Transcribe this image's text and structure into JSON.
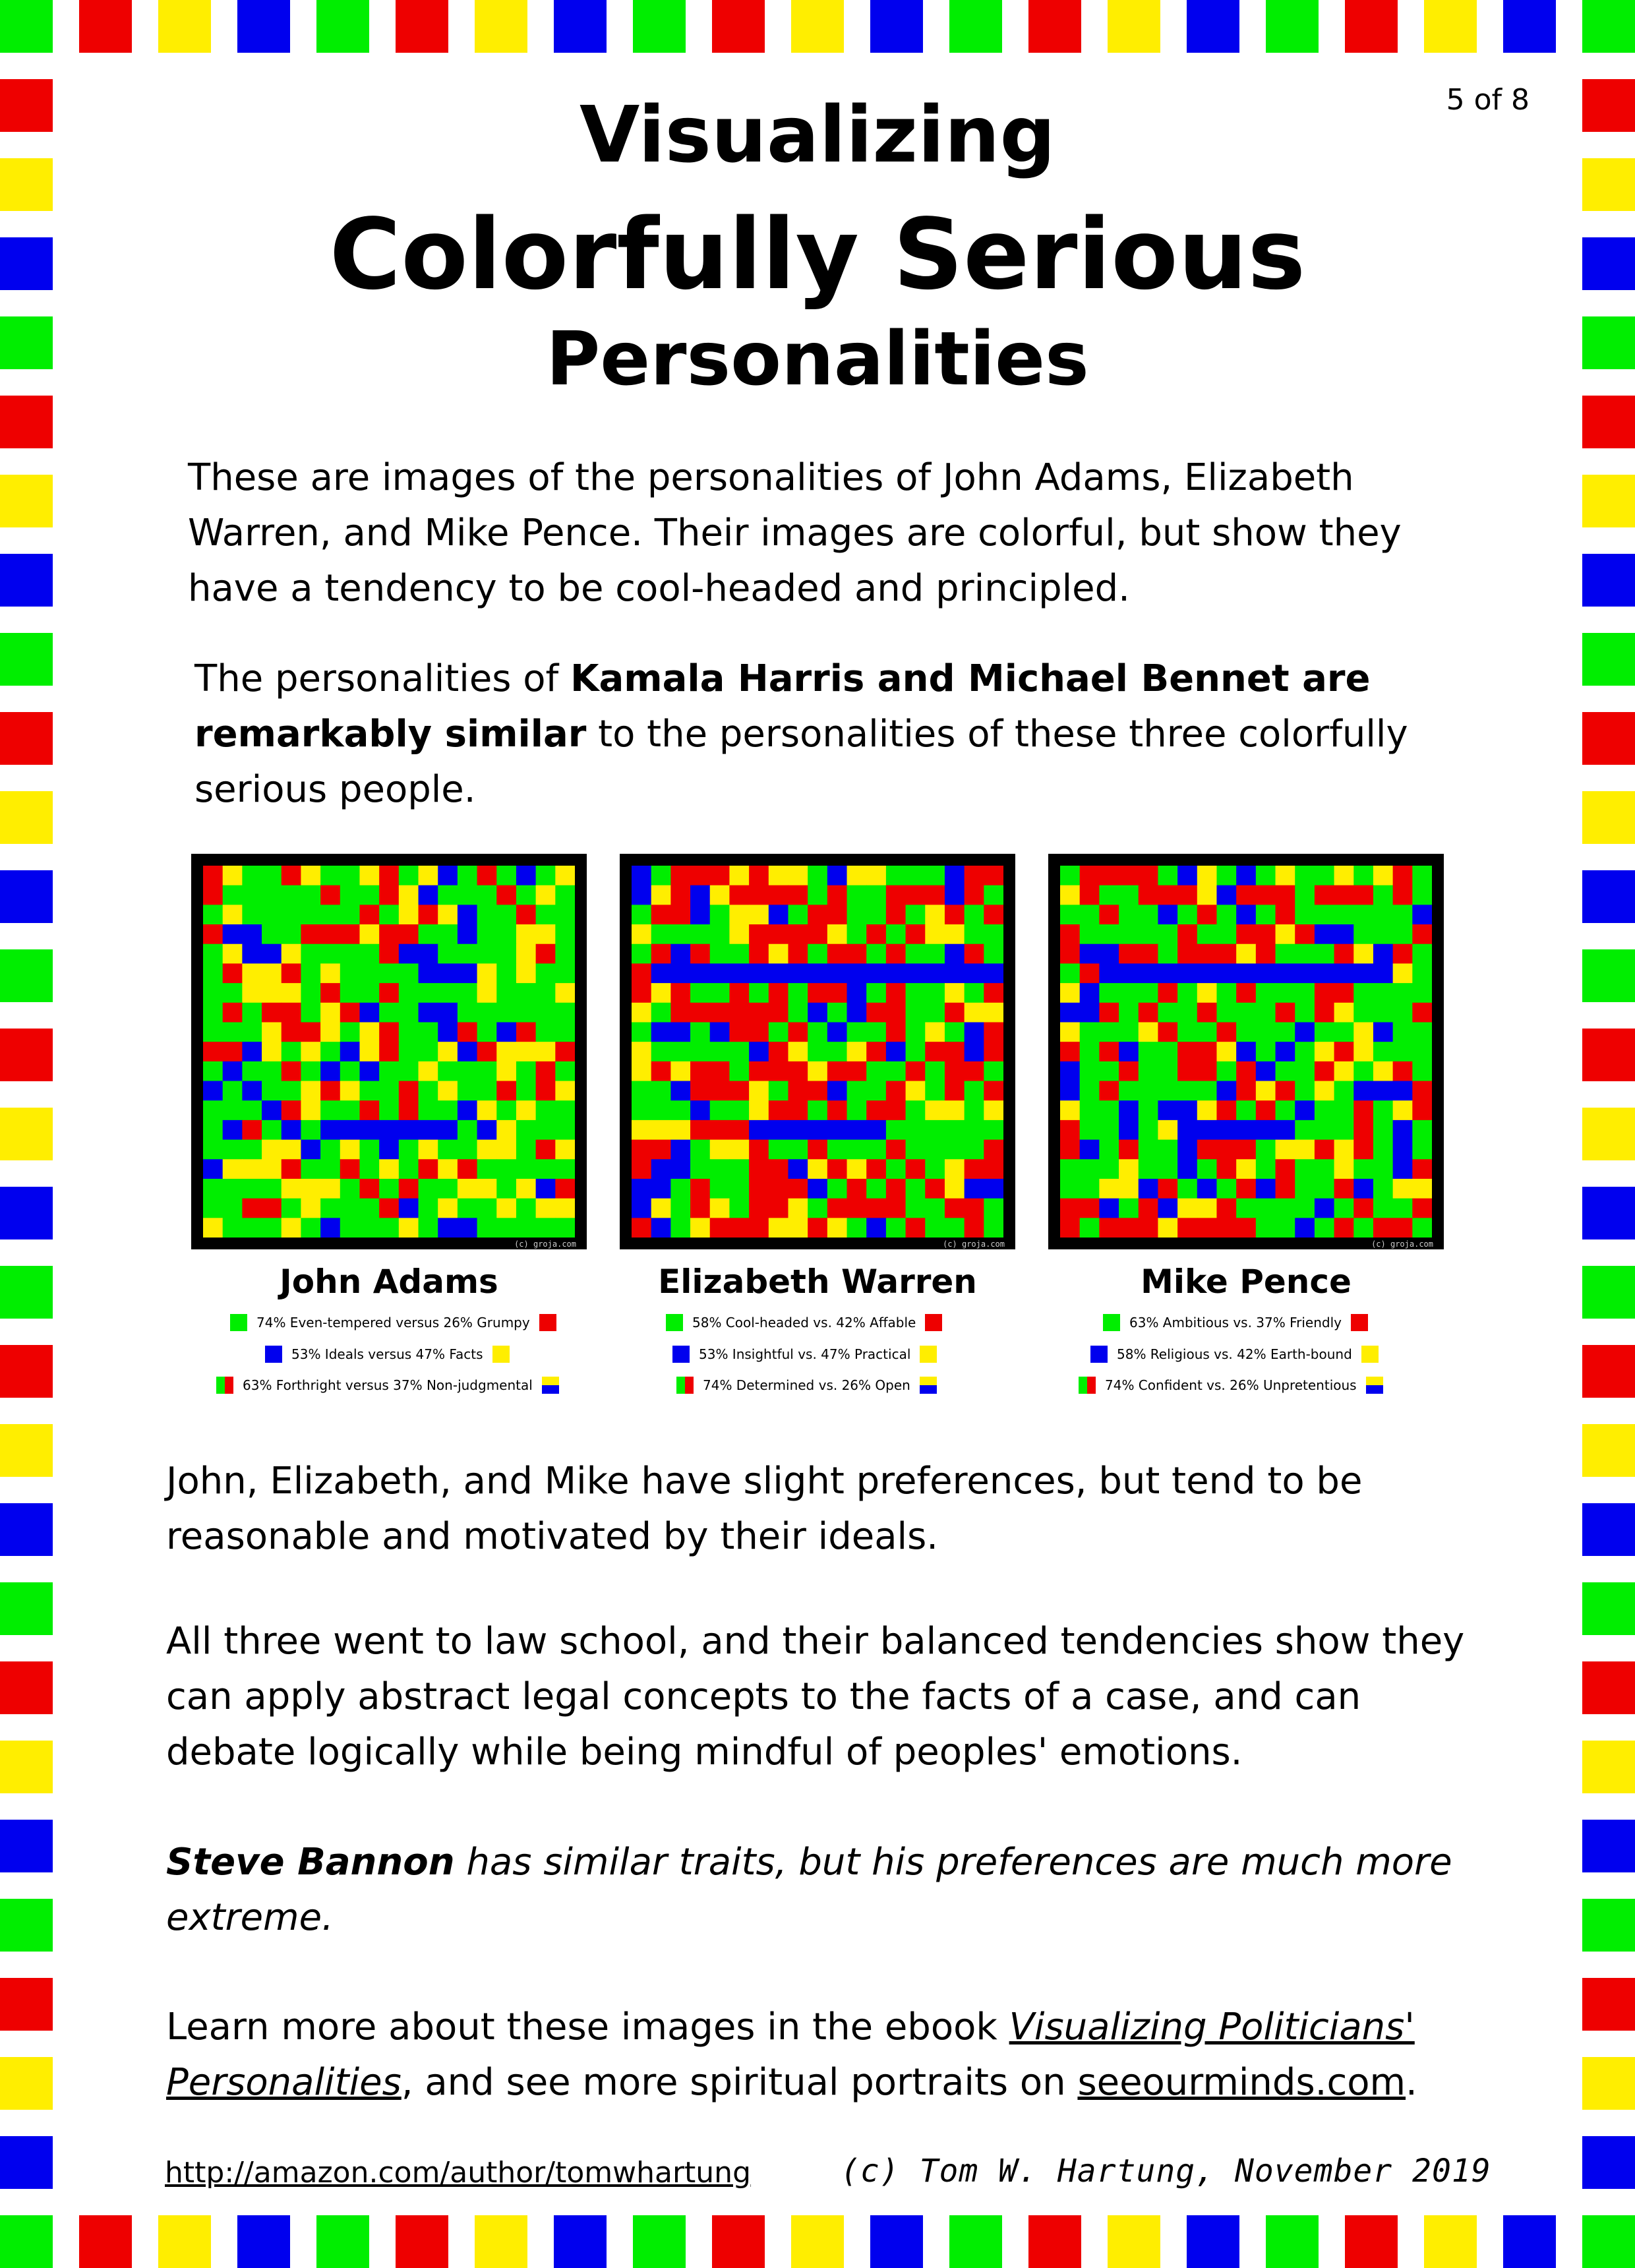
{
  "page_number": "5 of 8",
  "title": {
    "line1": "Visualizing",
    "line2": "Colorfully Serious",
    "line3": "Personalities"
  },
  "intro": {
    "text": "These are images of the personalities of John Adams, Elizabeth Warren, and Mike Pence.  Their images are colorful, but show they have a tendency to be cool-headed and principled."
  },
  "similar": {
    "prefix": "The personalities of ",
    "bold": "Kamala Harris and Michael Bennet are remarkably similar",
    "suffix": " to the personalities of these three colorfully serious people."
  },
  "portraits": [
    {
      "name": "John Adams",
      "credit": "(c) groja.com",
      "traits": [
        {
          "text": "74% Even-tempered versus 26% Grumpy",
          "left_icon": "green-square-icon",
          "right_icon": "red-square-icon"
        },
        {
          "text": "53% Ideals versus 47% Facts",
          "left_icon": "blue-square-icon",
          "right_icon": "yellow-square-icon"
        },
        {
          "text": "63% Forthright versus 37% Non-judgmental",
          "left_icon": "green-red-split-icon",
          "right_icon": "yellow-blue-split-icon"
        }
      ]
    },
    {
      "name": "Elizabeth Warren",
      "credit": "(c) groja.com",
      "traits": [
        {
          "text": "58% Cool-headed vs. 42% Affable",
          "left_icon": "green-square-icon",
          "right_icon": "red-square-icon"
        },
        {
          "text": "53% Insightful vs. 47% Practical",
          "left_icon": "blue-square-icon",
          "right_icon": "yellow-square-icon"
        },
        {
          "text": "74% Determined vs. 26% Open",
          "left_icon": "green-red-split-icon",
          "right_icon": "yellow-blue-split-icon"
        }
      ]
    },
    {
      "name": "Mike Pence",
      "credit": "(c) groja.com",
      "traits": [
        {
          "text": "63% Ambitious vs. 37% Friendly",
          "left_icon": "green-square-icon",
          "right_icon": "red-square-icon"
        },
        {
          "text": "58% Religious vs. 42% Earth-bound",
          "left_icon": "blue-square-icon",
          "right_icon": "yellow-square-icon"
        },
        {
          "text": "74% Confident vs. 26% Unpretentious",
          "left_icon": "green-red-split-icon",
          "right_icon": "yellow-blue-split-icon"
        }
      ]
    }
  ],
  "body": {
    "p1": "John, Elizabeth, and Mike have slight preferences, but tend to be reasonable and motivated by their ideals.",
    "p2": "All three went to law school, and their balanced tendencies show they can apply abstract legal concepts to the facts of a case, and can debate logically while being mindful of peoples' emotions.",
    "p3_bold": "Steve Bannon",
    "p3_rest": " has similar traits, but his preferences are much more extreme.",
    "p4_prefix": "Learn more about these images in the ebook ",
    "p4_link": "Visualizing Politicians' Personalities",
    "p4_middle": ", and see more spiritual portraits on ",
    "p4_site": "seeourminds.com",
    "p4_suffix": "."
  },
  "footer": {
    "url": "http://amazon.com/author/tomwhartung",
    "credit": "(c) Tom W. Hartung, November 2019"
  },
  "colors": {
    "green": "#00ee00",
    "red": "#ee0000",
    "yellow": "#ffee00",
    "blue": "#0000ee",
    "black": "#000000"
  }
}
